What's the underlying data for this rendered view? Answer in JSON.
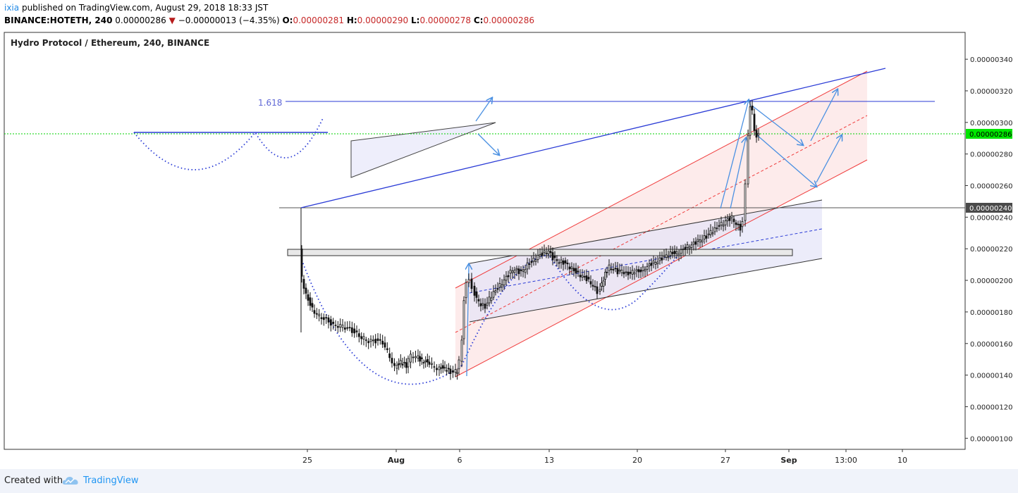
{
  "header": {
    "author": "ixia",
    "published_text": "published on TradingView.com, August 29, 2018 18:33 JST",
    "symbol_interval": "BINANCE:HOTETH, 240",
    "last_price": "0.00000286",
    "change_arrow": "▼",
    "change": "−0.00000013 (−4.35%)",
    "open_label": "O:",
    "open": "0.00000281",
    "high_label": "H:",
    "high": "0.00000290",
    "low_label": "L:",
    "low": "0.00000278",
    "close_label": "C:",
    "close": "0.00000286"
  },
  "chart_data": {
    "type": "candlestick",
    "title": "Hydro Protocol / Ethereum, 240, BINANCE",
    "y_ticks": [
      "0.00000100",
      "0.00000120",
      "0.00000140",
      "0.00000160",
      "0.00000180",
      "0.00000200",
      "0.00000220",
      "0.00000240",
      "0.00000260",
      "0.00000280",
      "0.00000300",
      "0.00000320",
      "0.00000340"
    ],
    "ylim": [
      9.3e-07,
      3.57e-06
    ],
    "x_ticks": [
      "25",
      "Aug",
      "6",
      "13",
      "20",
      "27",
      "Sep",
      "13:00",
      "10"
    ],
    "current_price_label": "0.00000286",
    "horizontal_price_label": "0.00000240",
    "fib_label": "1.618",
    "colors": {
      "current_price_bg": "#00e600",
      "horizontal_label_bg": "#4a4a4a",
      "trend_blue": "#2a3bd6",
      "channel_red": "#f03c3c",
      "arrow_blue": "#4a90e2"
    }
  },
  "footer": {
    "created_with": "Created with",
    "brand": "TradingView"
  }
}
